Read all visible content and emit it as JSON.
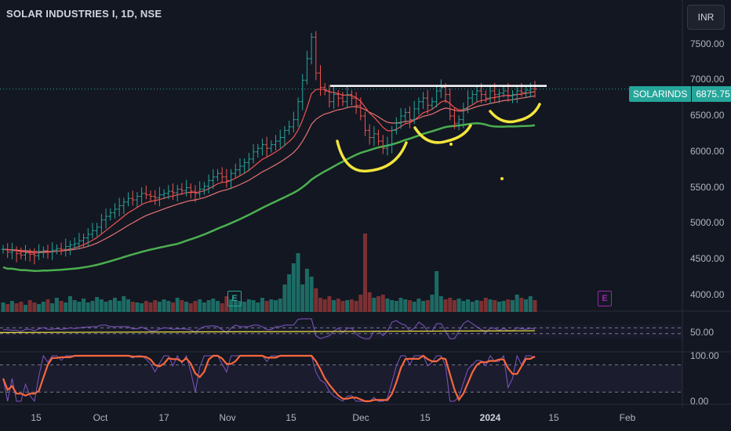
{
  "header": {
    "title": "SOLAR INDUSTRIES I, 1D, NSE",
    "currency": "INR"
  },
  "price_tag": {
    "symbol": "SOLARINDS",
    "value": "6875.75"
  },
  "earnings_markers": [
    "E",
    "E"
  ],
  "colors": {
    "up": "#26a69a",
    "down": "#ef5350",
    "ema_short": "#ef5350",
    "ema_mid": "#e57373",
    "sma_long": "#4caf50",
    "rsi": "#7e57c2",
    "stoch_k": "#f7673d",
    "annotation": "#f2e53c",
    "resistance": "#ffffff"
  },
  "chart_data": {
    "type": "bar",
    "title": "SOLAR INDUSTRIES I, 1D, NSE",
    "ylim": [
      3800,
      7900
    ],
    "y_ticks": [
      "7500.00",
      "7000.00",
      "6500.00",
      "6000.00",
      "5500.00",
      "5000.00",
      "4500.00",
      "4000.00"
    ],
    "x_ticks": [
      "15",
      "Oct",
      "17",
      "Nov",
      "15",
      "Dec",
      "15",
      "2024",
      "15",
      "Feb"
    ],
    "last_price": 6875.75,
    "resistance_level": 6920,
    "closes": [
      4640,
      4600,
      4620,
      4580,
      4560,
      4590,
      4570,
      4550,
      4600,
      4620,
      4610,
      4630,
      4650,
      4640,
      4680,
      4700,
      4720,
      4760,
      4800,
      4850,
      4900,
      4950,
      5050,
      5100,
      5150,
      5200,
      5250,
      5300,
      5350,
      5330,
      5380,
      5420,
      5400,
      5380,
      5360,
      5400,
      5420,
      5450,
      5430,
      5480,
      5460,
      5500,
      5450,
      5420,
      5480,
      5520,
      5600,
      5650,
      5700,
      5650,
      5600,
      5700,
      5750,
      5800,
      5850,
      5900,
      6000,
      6050,
      6100,
      6050,
      6100,
      6150,
      6200,
      6300,
      6350,
      6450,
      6700,
      7000,
      7300,
      7600,
      7100,
      6900,
      6850,
      6700,
      6800,
      6750,
      6700,
      6800,
      6750,
      6650,
      6500,
      6300,
      6200,
      6250,
      6150,
      6050,
      6100,
      6300,
      6400,
      6500,
      6550,
      6450,
      6600,
      6700,
      6750,
      6650,
      6700,
      6850,
      6900,
      6800,
      6500,
      6400,
      6450,
      6600,
      6750,
      6800,
      6850,
      6800,
      6750,
      6850,
      6800,
      6820,
      6850,
      6780,
      6800,
      6850,
      6830,
      6860,
      6880,
      6875.75
    ],
    "volume_rel": [
      0.12,
      0.1,
      0.14,
      0.11,
      0.13,
      0.09,
      0.15,
      0.12,
      0.1,
      0.13,
      0.16,
      0.11,
      0.18,
      0.14,
      0.12,
      0.2,
      0.15,
      0.13,
      0.17,
      0.12,
      0.14,
      0.19,
      0.16,
      0.13,
      0.15,
      0.18,
      0.14,
      0.2,
      0.16,
      0.13,
      0.12,
      0.11,
      0.14,
      0.12,
      0.15,
      0.13,
      0.16,
      0.14,
      0.12,
      0.18,
      0.15,
      0.13,
      0.11,
      0.14,
      0.16,
      0.12,
      0.15,
      0.17,
      0.14,
      0.11,
      0.2,
      0.16,
      0.15,
      0.14,
      0.13,
      0.16,
      0.15,
      0.12,
      0.18,
      0.14,
      0.16,
      0.15,
      0.17,
      0.35,
      0.48,
      0.62,
      0.75,
      0.35,
      0.55,
      0.45,
      0.3,
      0.18,
      0.16,
      0.2,
      0.15,
      0.17,
      0.14,
      0.15,
      0.16,
      0.14,
      0.22,
      1.0,
      0.25,
      0.18,
      0.2,
      0.22,
      0.17,
      0.15,
      0.14,
      0.18,
      0.16,
      0.15,
      0.13,
      0.17,
      0.14,
      0.15,
      0.22,
      0.52,
      0.2,
      0.16,
      0.18,
      0.15,
      0.17,
      0.14,
      0.16,
      0.13,
      0.15,
      0.14,
      0.18,
      0.16,
      0.15,
      0.13,
      0.14,
      0.16,
      0.15,
      0.22,
      0.18,
      0.16,
      0.2,
      0.15
    ],
    "rsi_range": [
      0,
      100
    ],
    "rsi_ticks": [
      "50.00"
    ],
    "stoch_ticks": [
      "100.00",
      "0.00"
    ]
  }
}
